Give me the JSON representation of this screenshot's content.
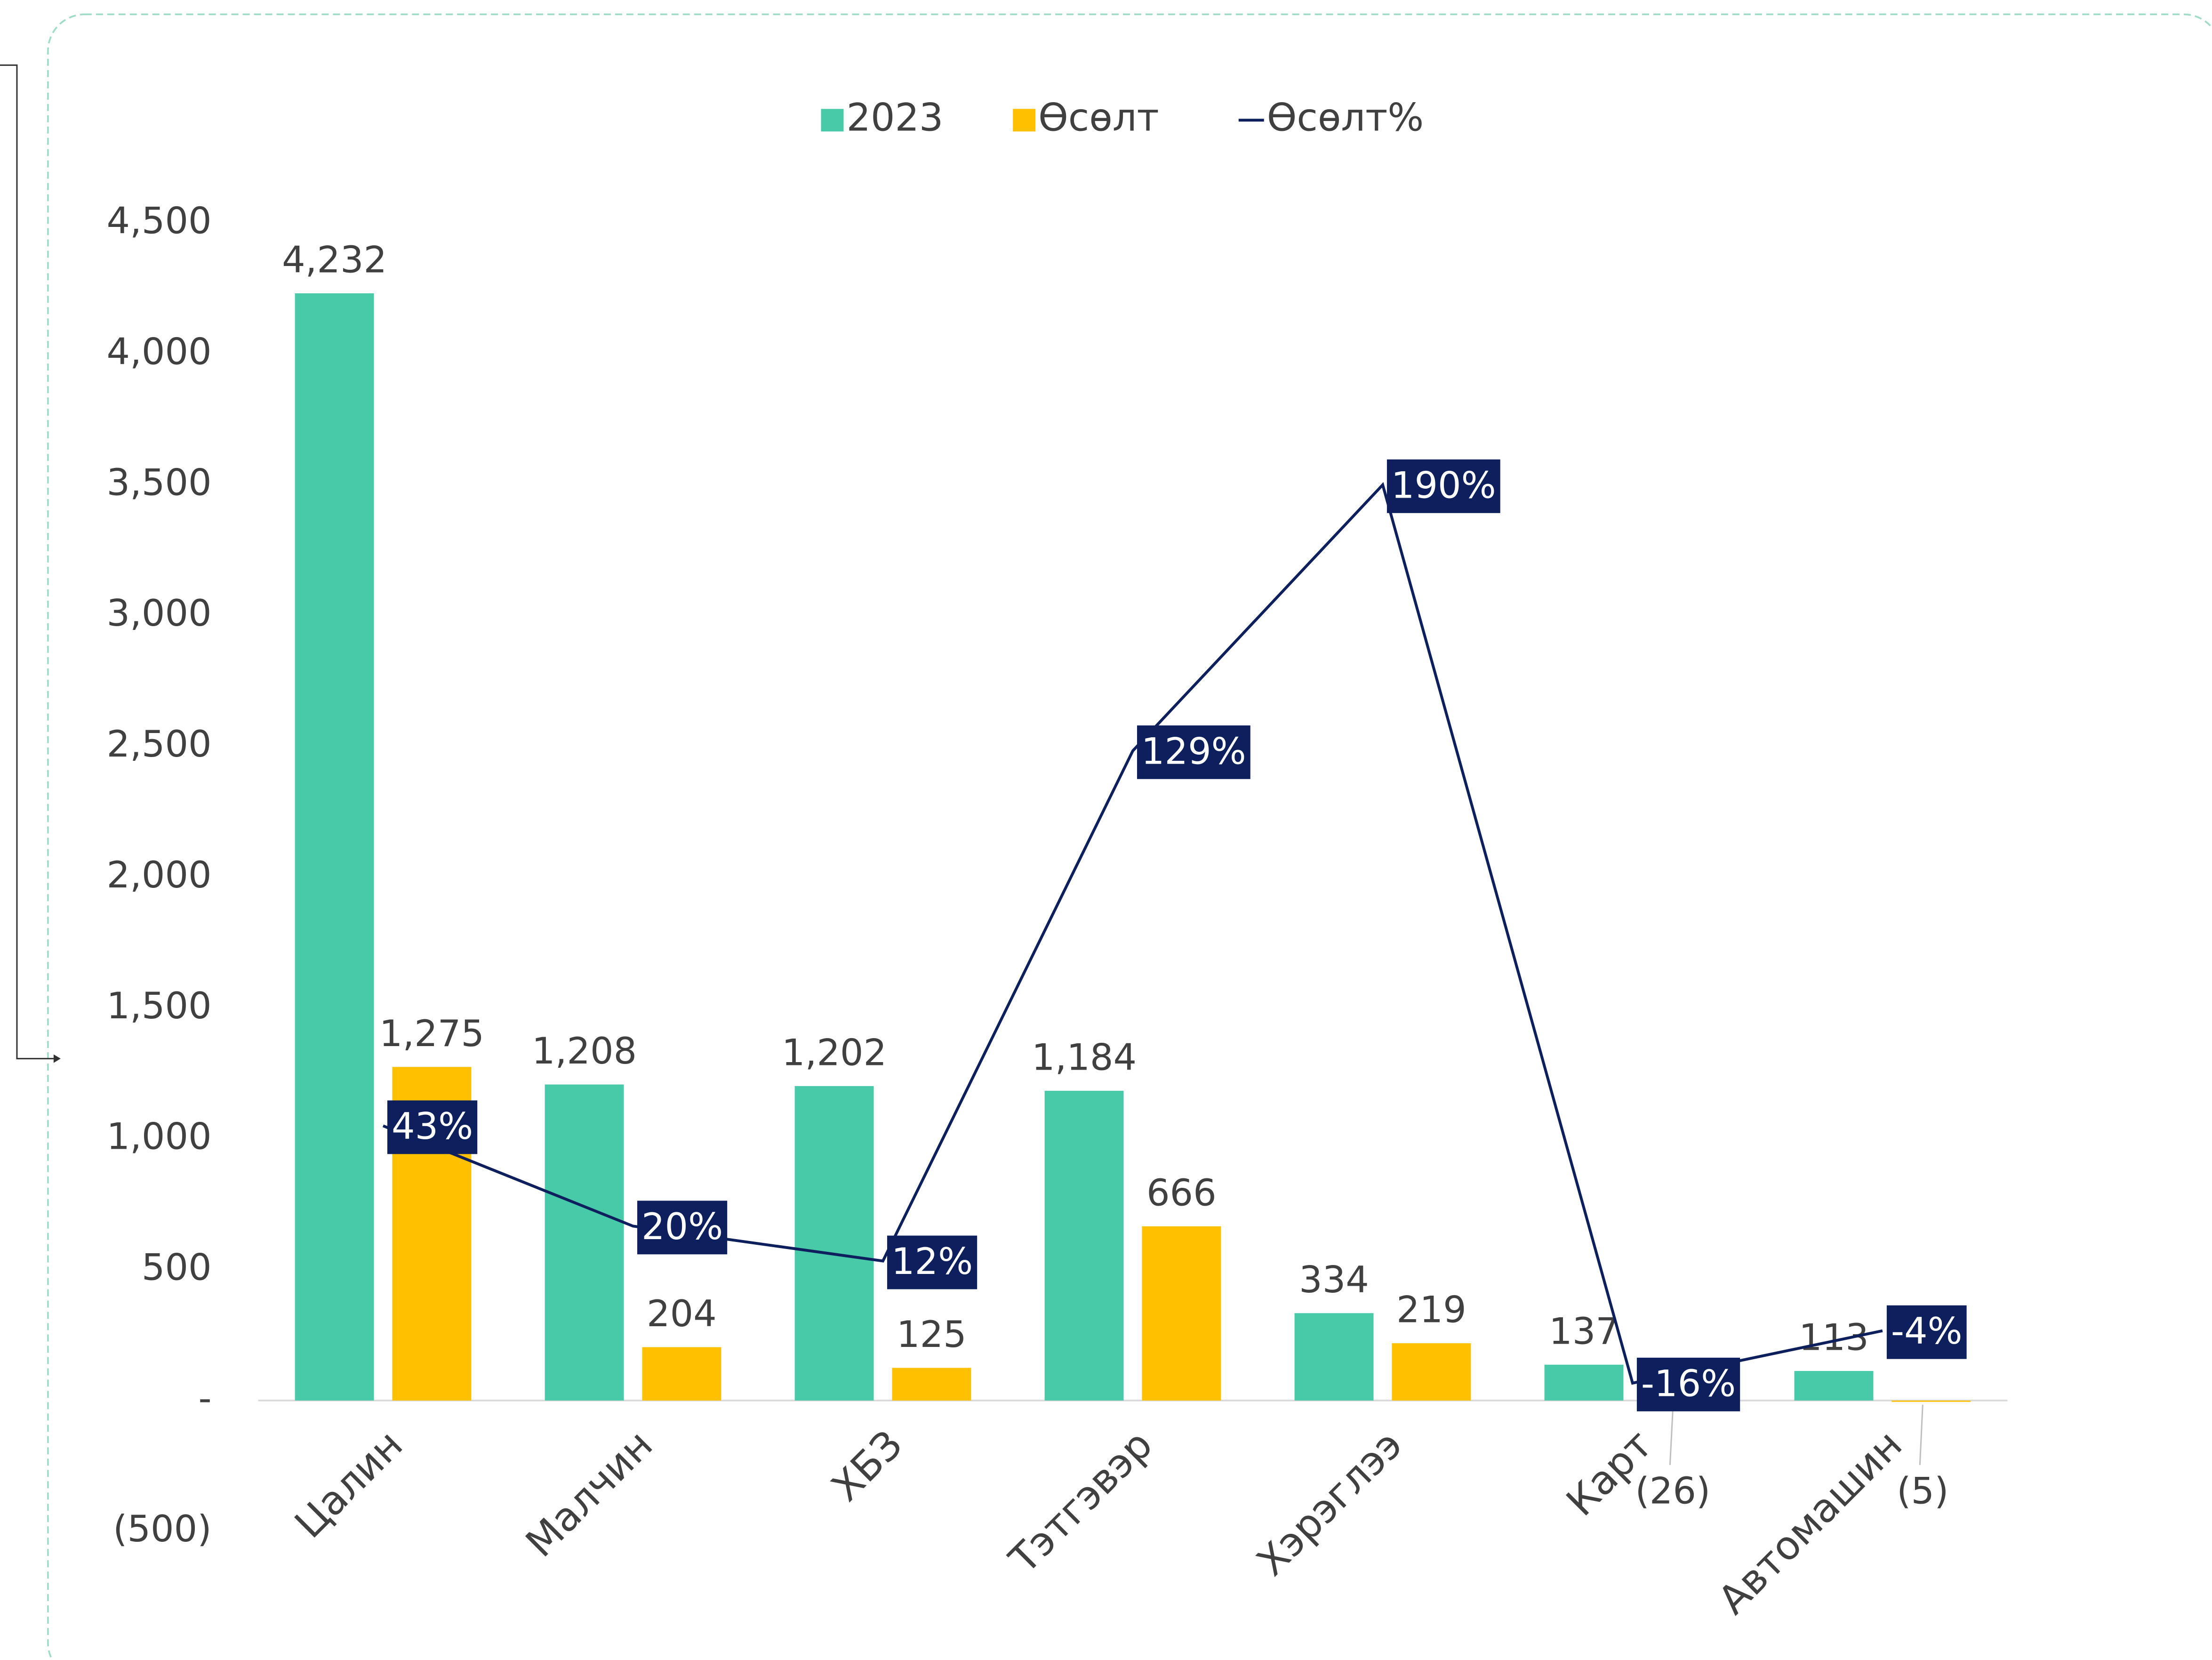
{
  "chart_data": {
    "type": "bar_line",
    "categories": [
      "Цалин",
      "Малчин",
      "ХБЗ",
      "Тэтгэвэр",
      "Хэрэглээ",
      "Карт",
      "Автомашин"
    ],
    "series": [
      {
        "name": "2023",
        "type": "bar",
        "color": "#48c9a8",
        "values": [
          4232,
          1208,
          1202,
          1184,
          334,
          137,
          113
        ],
        "value_labels": [
          "4,232",
          "1,208",
          "1,202",
          "1,184",
          "334",
          "137",
          "113"
        ]
      },
      {
        "name": "Өсөлт",
        "type": "bar",
        "color": "#ffc000",
        "values": [
          1275,
          204,
          125,
          666,
          219,
          -26,
          -5
        ],
        "value_labels": [
          "1,275",
          "204",
          "125",
          "666",
          "219",
          "(26)",
          "(5)"
        ]
      },
      {
        "name": "Өсөлт%",
        "type": "line",
        "axis": "y2",
        "color": "#0d1f5c",
        "values": [
          43,
          20,
          12,
          129,
          190,
          -16,
          -4
        ],
        "value_labels": [
          "43%",
          "20%",
          "12%",
          "129%",
          "190%",
          "-16%",
          "-4%"
        ]
      }
    ],
    "ylim": [
      -500,
      4500
    ],
    "yticks": [
      {
        "value": -500,
        "label": "(500)"
      },
      {
        "value": 0,
        "label": "-"
      },
      500,
      {
        "value": 1000,
        "label": "1,000"
      },
      {
        "value": 1500,
        "label": "1,500"
      },
      {
        "value": 2000,
        "label": "2,000"
      },
      {
        "value": 2500,
        "label": "2,500"
      },
      {
        "value": 3000,
        "label": "3,000"
      },
      {
        "value": 3500,
        "label": "3,500"
      },
      {
        "value": 4000,
        "label": "4,000"
      },
      {
        "value": 4500,
        "label": "4,500"
      }
    ],
    "y2lim": [
      -50,
      250
    ],
    "legend": "top"
  }
}
